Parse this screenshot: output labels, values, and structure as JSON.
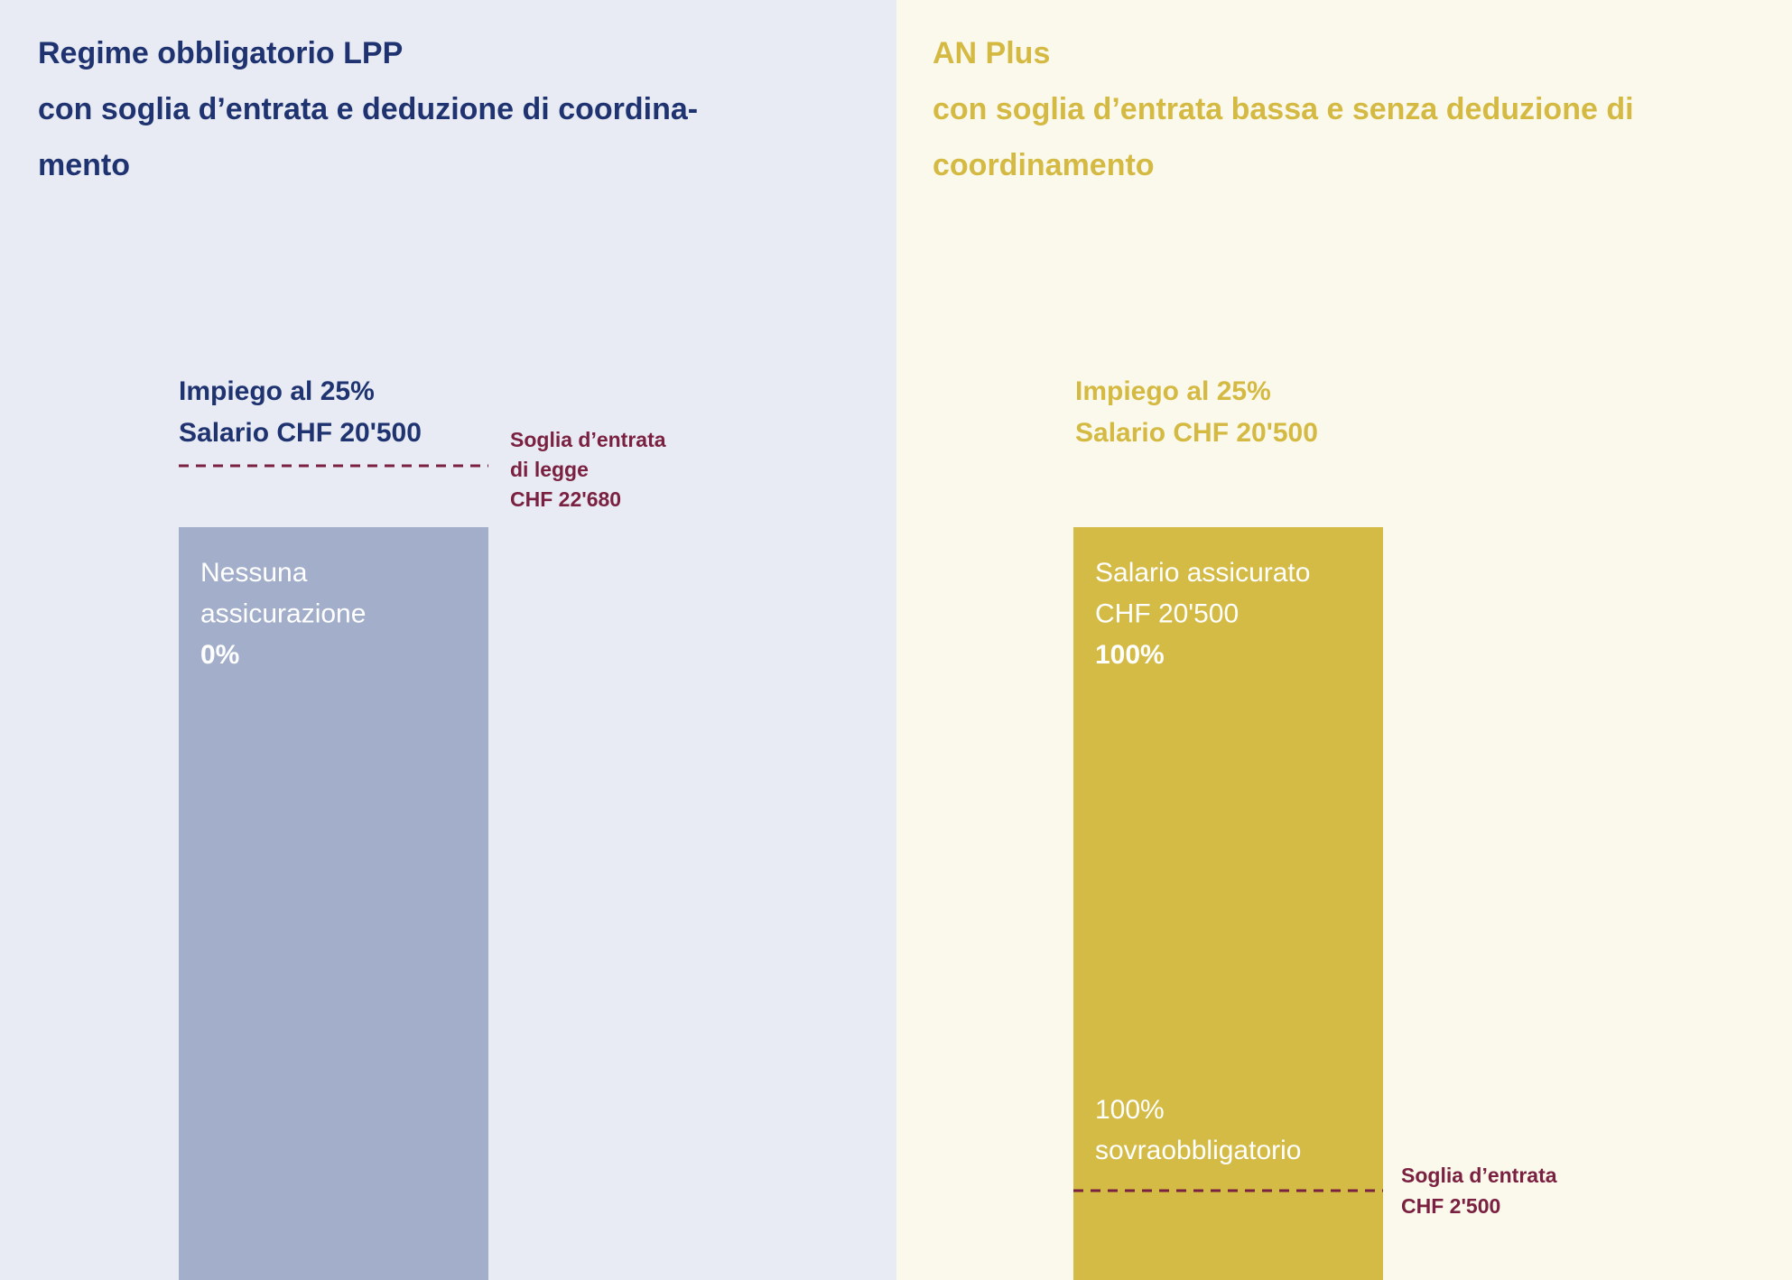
{
  "left": {
    "title": [
      "Regime obbligatorio LPP",
      "con soglia d’entrata e deduzione di coordina-",
      "mento"
    ],
    "employment": "Impiego al 25%",
    "salary": "Salario CHF 20'500",
    "threshold": [
      "Soglia d’entrata",
      "di legge",
      "CHF 22'680"
    ],
    "bar_text": [
      "Nessuna",
      "assicurazione",
      "0%"
    ]
  },
  "right": {
    "title": [
      "AN Plus",
      "con soglia d’entrata bassa e senza deduzione di",
      "coordinamento"
    ],
    "employment": "Impiego al 25%",
    "salary": "Salario CHF 20'500",
    "threshold": [
      "Soglia d’entrata",
      "CHF 2'500"
    ],
    "bar_text": [
      "Salario assicurato",
      "CHF 20'500",
      "100%"
    ],
    "bar_bottom_text": [
      "100%",
      "sovraobbligatorio"
    ]
  }
}
